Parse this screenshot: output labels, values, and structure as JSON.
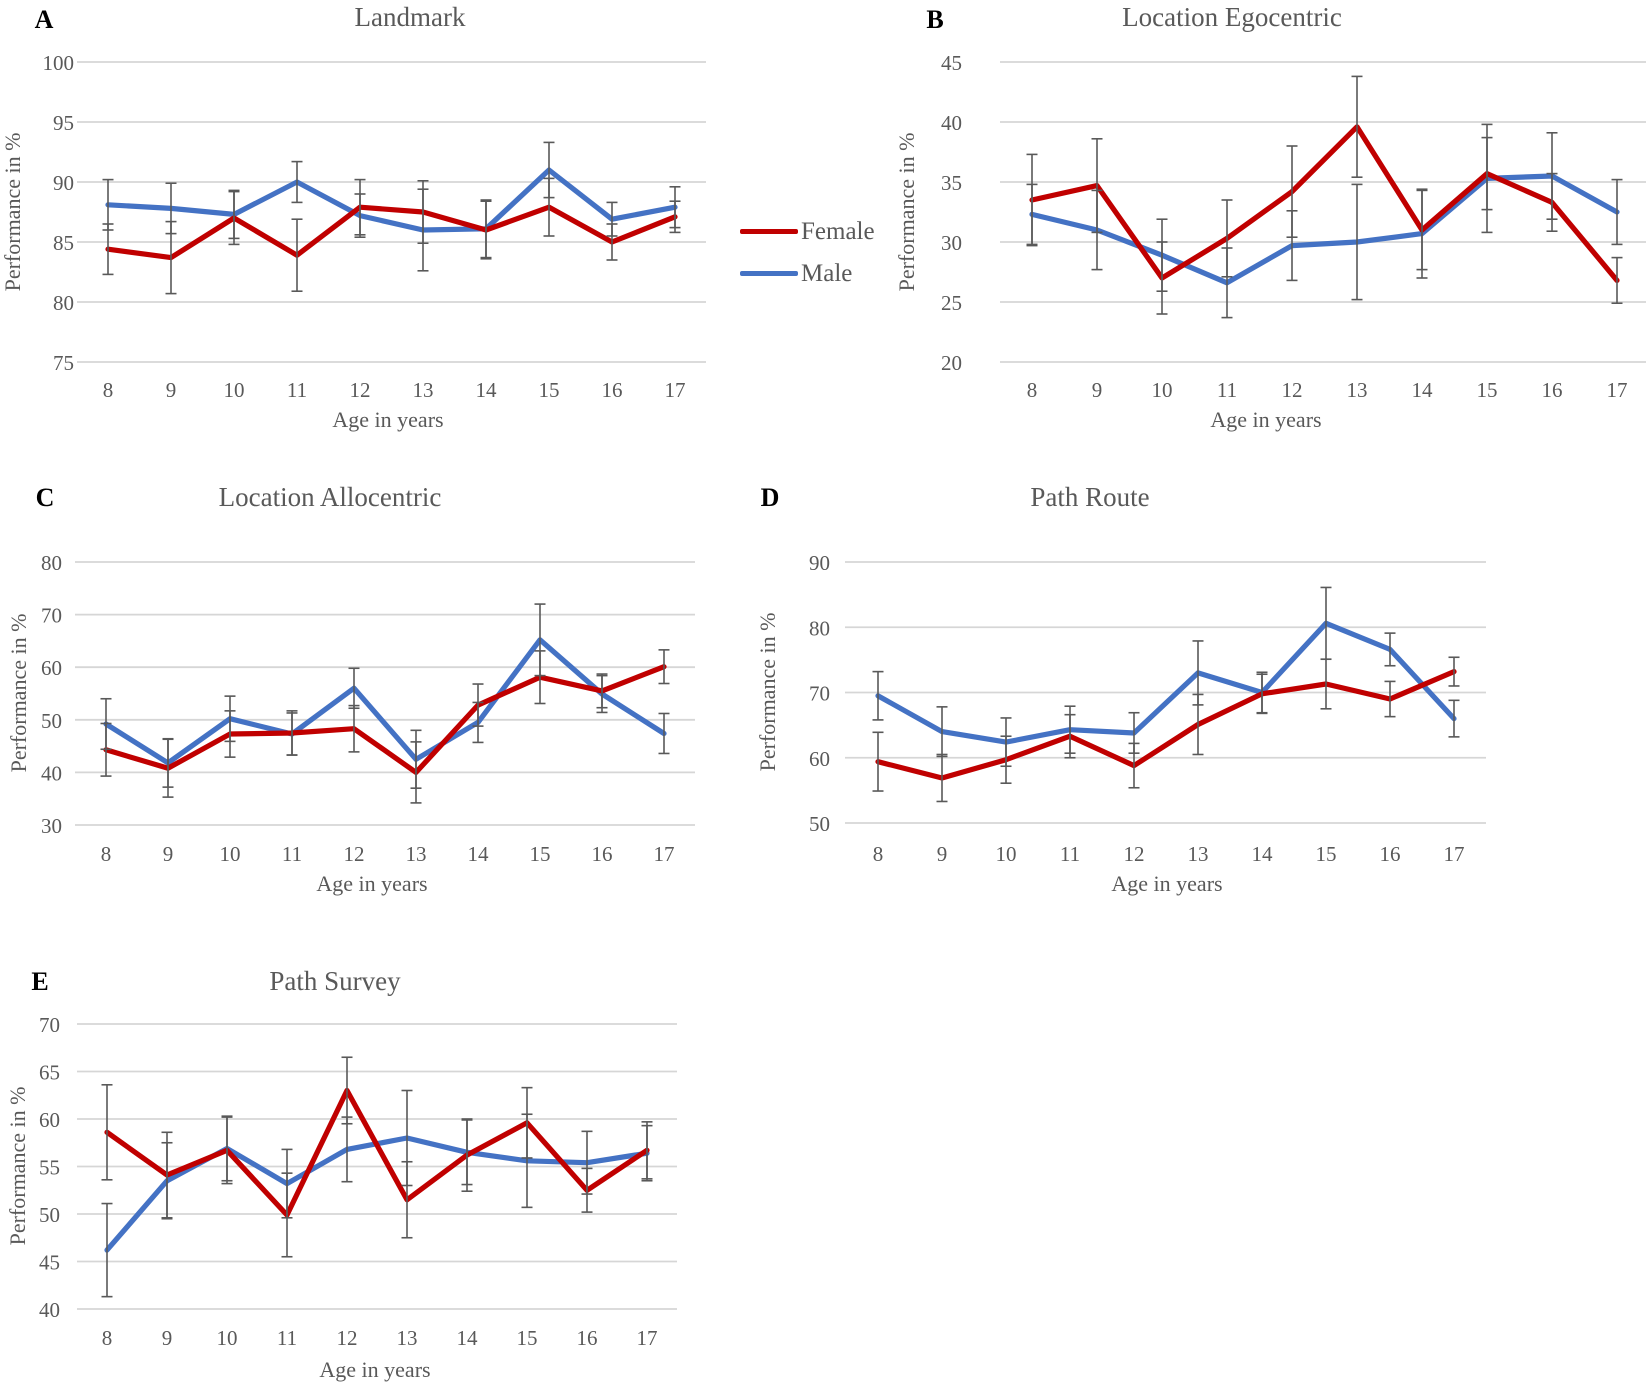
{
  "figure": {
    "description": "Five line charts (panels A-E) of spatial task performance by age and sex",
    "background": "#ffffff"
  },
  "palette": {
    "female": "#C00000",
    "male": "#4472C4",
    "grid": "#D6D6D6",
    "text": "#595959",
    "error_bar": "#595959",
    "panel_letter": "#000000"
  },
  "legend": {
    "position": "right of panel A",
    "items": [
      {
        "label": "Female",
        "color": "#C00000"
      },
      {
        "label": "Male",
        "color": "#4472C4"
      }
    ]
  },
  "chart_data": [
    {
      "type": "line",
      "panel": "A",
      "title": "Landmark",
      "xlabel": "Age in years",
      "ylabel": "Performance in %",
      "categories": [
        8,
        9,
        10,
        11,
        12,
        13,
        14,
        15,
        16,
        17
      ],
      "ylim": [
        75,
        100
      ],
      "ystep": 5,
      "grid": true,
      "series": [
        {
          "name": "Female",
          "color": "#C00000",
          "values": [
            84.4,
            83.7,
            87.0,
            83.9,
            87.9,
            87.5,
            86.0,
            87.9,
            85.0,
            87.1
          ],
          "errors": [
            2.1,
            3.0,
            2.2,
            3.0,
            2.3,
            2.6,
            2.4,
            2.4,
            1.5,
            1.3
          ]
        },
        {
          "name": "Male",
          "color": "#4472C4",
          "values": [
            88.1,
            87.8,
            87.3,
            90.0,
            87.2,
            86.0,
            86.1,
            91.0,
            86.9,
            87.9
          ],
          "errors": [
            2.1,
            2.1,
            2.0,
            1.7,
            1.8,
            3.4,
            2.4,
            2.3,
            1.4,
            1.7
          ]
        }
      ]
    },
    {
      "type": "line",
      "panel": "B",
      "title": "Location Egocentric",
      "xlabel": "Age in years",
      "ylabel": "Performance in %",
      "categories": [
        8,
        9,
        10,
        11,
        12,
        13,
        14,
        15,
        16,
        17
      ],
      "ylim": [
        20,
        45
      ],
      "ystep": 5,
      "grid": true,
      "series": [
        {
          "name": "Female",
          "color": "#C00000",
          "values": [
            33.5,
            34.7,
            27.0,
            30.3,
            34.2,
            39.6,
            31.0,
            35.7,
            33.3,
            26.8
          ],
          "errors": [
            3.8,
            3.9,
            3.0,
            3.2,
            3.8,
            4.2,
            3.3,
            3.0,
            2.4,
            1.9
          ]
        },
        {
          "name": "Male",
          "color": "#4472C4",
          "values": [
            32.3,
            31.0,
            28.9,
            26.6,
            29.7,
            30.0,
            30.7,
            35.3,
            35.5,
            32.5
          ],
          "errors": [
            2.5,
            3.3,
            3.0,
            2.9,
            2.9,
            4.8,
            3.7,
            4.5,
            3.6,
            2.7
          ]
        }
      ]
    },
    {
      "type": "line",
      "panel": "C",
      "title": "Location Allocentric",
      "xlabel": "Age in years",
      "ylabel": "Performance in %",
      "categories": [
        8,
        9,
        10,
        11,
        12,
        13,
        14,
        15,
        16,
        17
      ],
      "ylim": [
        30,
        80
      ],
      "ystep": 10,
      "grid": true,
      "series": [
        {
          "name": "Female",
          "color": "#C00000",
          "values": [
            44.3,
            40.8,
            47.3,
            47.5,
            48.3,
            40.0,
            52.8,
            58.1,
            55.5,
            60.1
          ],
          "errors": [
            5.0,
            5.5,
            4.4,
            4.2,
            4.4,
            5.8,
            4.0,
            5.0,
            3.2,
            3.2
          ]
        },
        {
          "name": "Male",
          "color": "#4472C4",
          "values": [
            49.2,
            41.8,
            50.2,
            47.3,
            56.0,
            42.5,
            49.5,
            65.2,
            54.9,
            47.4
          ],
          "errors": [
            4.8,
            4.6,
            4.3,
            4.0,
            3.8,
            5.5,
            3.8,
            6.8,
            3.5,
            3.8
          ]
        }
      ]
    },
    {
      "type": "line",
      "panel": "D",
      "title": "Path Route",
      "xlabel": "Age in years",
      "ylabel": "Performance in %",
      "categories": [
        8,
        9,
        10,
        11,
        12,
        13,
        14,
        15,
        16,
        17
      ],
      "ylim": [
        50,
        90
      ],
      "ystep": 10,
      "grid": true,
      "series": [
        {
          "name": "Female",
          "color": "#C00000",
          "values": [
            59.4,
            56.9,
            59.7,
            63.3,
            58.8,
            65.1,
            69.8,
            71.3,
            69.0,
            73.2
          ],
          "errors": [
            4.5,
            3.6,
            3.6,
            3.3,
            3.4,
            4.6,
            3.0,
            3.8,
            2.7,
            2.2
          ]
        },
        {
          "name": "Male",
          "color": "#4472C4",
          "values": [
            69.5,
            64.0,
            62.4,
            64.3,
            63.8,
            73.0,
            70.0,
            80.6,
            76.6,
            66.0
          ],
          "errors": [
            3.7,
            3.8,
            3.7,
            3.6,
            3.1,
            4.9,
            3.1,
            5.5,
            2.5,
            2.8
          ]
        }
      ]
    },
    {
      "type": "line",
      "panel": "E",
      "title": "Path Survey",
      "xlabel": "Age in years",
      "ylabel": "Performance in %",
      "categories": [
        8,
        9,
        10,
        11,
        12,
        13,
        14,
        15,
        16,
        17
      ],
      "ylim": [
        40,
        70
      ],
      "ystep": 5,
      "grid": true,
      "series": [
        {
          "name": "Female",
          "color": "#C00000",
          "values": [
            58.6,
            54.1,
            56.7,
            49.9,
            63.0,
            51.5,
            56.2,
            59.6,
            52.5,
            56.7
          ],
          "errors": [
            5.0,
            4.5,
            3.5,
            4.4,
            3.5,
            4.0,
            3.8,
            3.7,
            2.3,
            3.0
          ]
        },
        {
          "name": "Male",
          "color": "#4472C4",
          "values": [
            46.2,
            53.5,
            56.9,
            53.2,
            56.8,
            58.0,
            56.5,
            55.6,
            55.4,
            56.4
          ],
          "errors": [
            4.9,
            4.0,
            3.4,
            3.6,
            3.4,
            5.0,
            3.4,
            4.9,
            3.3,
            2.9
          ]
        }
      ]
    }
  ]
}
